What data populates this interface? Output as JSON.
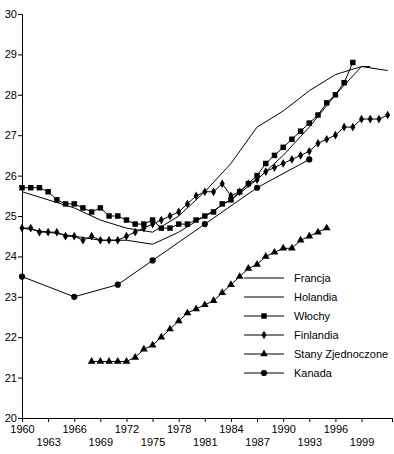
{
  "chart_data": {
    "type": "line",
    "xlim": [
      1960,
      2002.5
    ],
    "xticks": [
      1960,
      1963,
      1966,
      1969,
      1972,
      1975,
      1978,
      1981,
      1984,
      1987,
      1990,
      1993,
      1996,
      1999
    ],
    "ylim": [
      20,
      30
    ],
    "yticks": [
      20,
      21,
      22,
      23,
      24,
      25,
      26,
      27,
      28,
      29,
      30
    ],
    "legend": "lower right",
    "grid": false,
    "series": [
      {
        "name": "Francja",
        "color": "#000000",
        "marker": "none",
        "line_style": "solid",
        "x": [
          1960,
          1963,
          1966,
          1969,
          1972,
          1975,
          1978,
          1981,
          1984,
          1987,
          1990,
          1993,
          1996,
          1999,
          2000
        ],
        "values": [
          24.7,
          24.6,
          24.5,
          24.4,
          24.4,
          24.3,
          24.6,
          25.0,
          25.4,
          25.9,
          26.5,
          27.2,
          28.0,
          28.7,
          28.7
        ]
      },
      {
        "name": "Holandia",
        "color": "#000000",
        "marker": "none",
        "line_style": "solid",
        "x": [
          1960,
          1963,
          1966,
          1969,
          1972,
          1975,
          1978,
          1981,
          1984,
          1987,
          1990,
          1993,
          1996,
          1999,
          2002
        ],
        "values": [
          25.6,
          25.4,
          25.2,
          24.9,
          24.7,
          24.6,
          25.0,
          25.6,
          26.3,
          27.2,
          27.6,
          28.1,
          28.5,
          28.7,
          28.6
        ]
      },
      {
        "name": "Włochy",
        "color": "#000000",
        "marker": "square",
        "line_style": "solid",
        "x": [
          1960,
          1961,
          1962,
          1963,
          1964,
          1965,
          1966,
          1967,
          1968,
          1969,
          1970,
          1971,
          1972,
          1973,
          1974,
          1975,
          1976,
          1977,
          1978,
          1979,
          1980,
          1981,
          1982,
          1983,
          1984,
          1985,
          1986,
          1987,
          1988,
          1989,
          1990,
          1991,
          1992,
          1993,
          1994,
          1995,
          1996,
          1997,
          1998
        ],
        "values": [
          25.7,
          25.7,
          25.7,
          25.6,
          25.4,
          25.3,
          25.3,
          25.2,
          25.1,
          25.2,
          25.0,
          25.0,
          24.9,
          24.8,
          24.8,
          24.9,
          24.7,
          24.7,
          24.8,
          24.8,
          24.9,
          25.0,
          25.1,
          25.3,
          25.4,
          25.6,
          25.8,
          26.0,
          26.3,
          26.5,
          26.7,
          26.9,
          27.1,
          27.3,
          27.5,
          27.8,
          28.0,
          28.3,
          28.8
        ]
      },
      {
        "name": "Finlandia",
        "color": "#000000",
        "marker": "diamond",
        "line_style": "solid",
        "x": [
          1960,
          1961,
          1962,
          1963,
          1964,
          1965,
          1966,
          1967,
          1968,
          1969,
          1970,
          1971,
          1972,
          1973,
          1974,
          1975,
          1976,
          1977,
          1978,
          1979,
          1980,
          1981,
          1982,
          1983,
          1984,
          1985,
          1986,
          1987,
          1988,
          1989,
          1990,
          1991,
          1992,
          1993,
          1994,
          1995,
          1996,
          1997,
          1998,
          1999,
          2000,
          2001,
          2002
        ],
        "values": [
          24.7,
          24.7,
          24.6,
          24.6,
          24.6,
          24.5,
          24.5,
          24.4,
          24.5,
          24.4,
          24.4,
          24.4,
          24.5,
          24.6,
          24.7,
          24.8,
          24.9,
          25.0,
          25.1,
          25.3,
          25.5,
          25.6,
          25.6,
          25.8,
          25.5,
          25.6,
          25.8,
          25.9,
          26.1,
          26.2,
          26.3,
          26.4,
          26.5,
          26.6,
          26.8,
          26.9,
          27.0,
          27.2,
          27.2,
          27.4,
          27.4,
          27.4,
          27.5
        ]
      },
      {
        "name": "Stany Zjednoczone",
        "color": "#000000",
        "marker": "triangle",
        "line_style": "solid",
        "x": [
          1968,
          1969,
          1970,
          1971,
          1972,
          1973,
          1974,
          1975,
          1976,
          1977,
          1978,
          1979,
          1980,
          1981,
          1982,
          1983,
          1984,
          1985,
          1986,
          1987,
          1988,
          1989,
          1990,
          1991,
          1992,
          1993,
          1994,
          1995
        ],
        "values": [
          21.4,
          21.4,
          21.4,
          21.4,
          21.4,
          21.5,
          21.7,
          21.8,
          22.0,
          22.2,
          22.4,
          22.6,
          22.7,
          22.8,
          22.9,
          23.1,
          23.3,
          23.5,
          23.7,
          23.8,
          24.0,
          24.1,
          24.2,
          24.2,
          24.4,
          24.5,
          24.6,
          24.7
        ]
      },
      {
        "name": "Kanada",
        "color": "#000000",
        "marker": "circle",
        "line_style": "solid",
        "x": [
          1960,
          1966,
          1971,
          1975,
          1981,
          1987,
          1993
        ],
        "values": [
          23.5,
          23.0,
          23.3,
          23.9,
          24.8,
          25.7,
          26.4
        ]
      }
    ]
  }
}
